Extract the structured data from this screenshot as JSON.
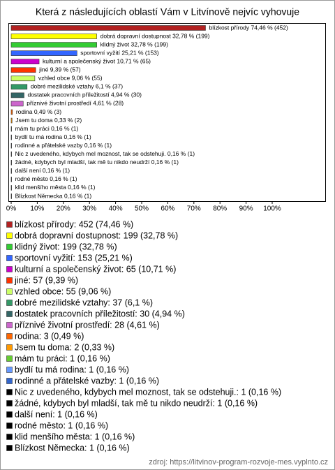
{
  "chart_data": {
    "type": "hbar",
    "title": "Která z následujících oblastí Vám v Litvínově nejvíc vyhovuje",
    "values": [
      74.46,
      32.78,
      32.78,
      25.21,
      10.71,
      9.39,
      9.06,
      6.1,
      4.94,
      4.61,
      0.49,
      0.33,
      0.16,
      0.16,
      0.16,
      0.16,
      0.16,
      0.16,
      0.16,
      0.16,
      0.16
    ],
    "value_labels": [
      "blízkost přírody 74,46 % (452)",
      "dobrá dopravní dostupnost 32,78 % (199)",
      "klidný život 32,78 % (199)",
      "sportovní vyžití 25,21 % (153)",
      "kulturní a společenský život 10,71 % (65)",
      "jiné 9,39 % (57)",
      "vzhled obce 9,06 % (55)",
      "dobré mezilidské vztahy 6,1 % (37)",
      "dostatek pracovních příležitostí 4,94 % (30)",
      "příznivé životní prostředí 4,61 % (28)",
      "rodina 0,49 % (3)",
      "Jsem tu doma 0,33 % (2)",
      "mám tu práci 0,16 % (1)",
      "bydlí tu má rodina 0,16 % (1)",
      "rodinné a přátelské vazby 0,16 % (1)",
      "Nic z uvedeného, kdybych mel moznost, tak se odstehuji. 0,16 % (1)",
      "žádné, kdybych byl mladší, tak mě tu nikdo neudrží 0,16 % (1)",
      "další není 0,16 % (1)",
      "rodné město 0,16 % (1)",
      "klid menšího města 0,16 % (1)",
      "Blízkost Německa 0,16 % (1)"
    ],
    "legend_labels": [
      "blízkost přírody: 452 (74,46 %)",
      "dobrá dopravní dostupnost: 199 (32,78 %)",
      "klidný život: 199 (32,78 %)",
      "sportovní vyžití: 153 (25,21 %)",
      "kulturní a společenský život: 65 (10,71 %)",
      "jiné: 57 (9,39 %)",
      "vzhled obce: 55 (9,06 %)",
      "dobré mezilidské vztahy: 37 (6,1 %)",
      "dostatek pracovních příležitostí: 30 (4,94 %)",
      "příznivé životní prostředí: 28 (4,61 %)",
      "rodina: 3 (0,49 %)",
      "Jsem tu doma: 2 (0,33 %)",
      "mám tu práci: 1 (0,16 %)",
      "bydlí tu má rodina: 1 (0,16 %)",
      "rodinné a přátelské vazby: 1 (0,16 %)",
      "Nic z uvedeného, kdybych mel moznost, tak se odstehuji.: 1 (0,16 %)",
      "žádné, kdybych byl mladší, tak mě tu nikdo neudrží: 1 (0,16 %)",
      "další není: 1 (0,16 %)",
      "rodné město: 1 (0,16 %)",
      "klid menšího města: 1 (0,16 %)",
      "Blízkost Německa: 1 (0,16 %)"
    ],
    "colors": [
      "#b22222",
      "#ffff00",
      "#33cc33",
      "#3366ff",
      "#cc00cc",
      "#ff3300",
      "#ccff66",
      "#339966",
      "#336666",
      "#cc66cc",
      "#ff6600",
      "#ff9900",
      "#66cc33",
      "#6699ff",
      "#3366cc",
      "#000000",
      "#000000",
      "#000000",
      "#000000",
      "#000000",
      "#000000"
    ],
    "xlim": [
      0,
      120
    ],
    "xticks": [
      {
        "value": 0,
        "label": "0%"
      },
      {
        "value": 10,
        "label": "10%"
      },
      {
        "value": 20,
        "label": "20%"
      },
      {
        "value": 30,
        "label": "30%"
      },
      {
        "value": 40,
        "label": "40%"
      },
      {
        "value": 50,
        "label": "50%"
      },
      {
        "value": 60,
        "label": "60%"
      },
      {
        "value": 70,
        "label": "70%"
      },
      {
        "value": 80,
        "label": "80%"
      },
      {
        "value": 90,
        "label": "90%"
      },
      {
        "value": 100,
        "label": "100%"
      }
    ],
    "source": "zdroj: https://litvinov-program-rozvoje-mes.vyplnto.cz"
  }
}
